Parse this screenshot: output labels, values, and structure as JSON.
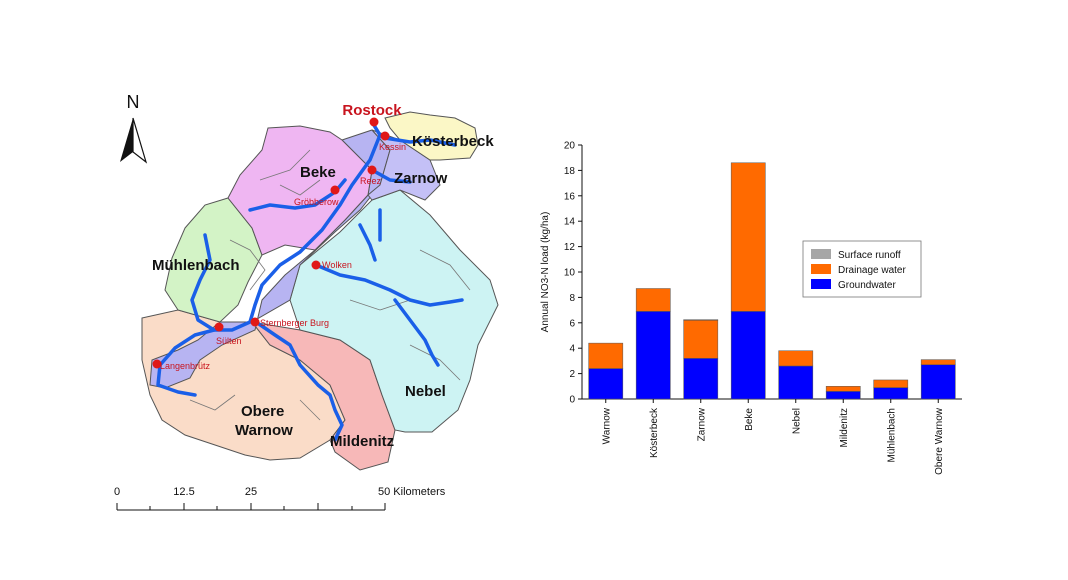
{
  "map": {
    "north_label": "N",
    "capital_label": "Rostock",
    "regions": {
      "koesterbeck": "Kösterbeck",
      "beke": "Beke",
      "zarnow": "Zarnow",
      "muehlenbach": "Mühlenbach",
      "nebel": "Nebel",
      "obere_warnow_1": "Obere",
      "obere_warnow_2": "Warnow",
      "mildenitz": "Mildenitz"
    },
    "towns": {
      "kessin": "Kessin",
      "reez": "Reez",
      "groebberow": "Gröbberow",
      "wolken": "Wolken",
      "sternberger_burg": "Sternberger Burg",
      "sulten": "Sülten",
      "langenbruetz": "Langenbrütz"
    },
    "scale": {
      "labels": [
        "0",
        "12.5",
        "25",
        "50 Kilometers"
      ]
    },
    "colors": {
      "river": "#1a5fe8",
      "town_dot": "#e01818",
      "town_text": "#c8141e"
    }
  },
  "chart_data": {
    "type": "bar",
    "stacked": true,
    "categories": [
      "Warnow",
      "Kösterbeck",
      "Zarnow",
      "Beke",
      "Nebel",
      "Mildenitz",
      "Mühlenbach",
      "Obere Warnow"
    ],
    "series": [
      {
        "name": "Groundwater",
        "color": "#0000ff",
        "values": [
          2.4,
          6.9,
          3.2,
          6.9,
          2.6,
          0.6,
          0.9,
          2.7
        ]
      },
      {
        "name": "Drainage water",
        "color": "#ff6a00",
        "values": [
          2.0,
          1.8,
          3.0,
          11.7,
          1.2,
          0.4,
          0.6,
          0.4
        ]
      },
      {
        "name": "Surface runoff",
        "color": "#a6a6a6",
        "values": [
          0.0,
          0.0,
          0.05,
          0.0,
          0.0,
          0.0,
          0.0,
          0.0
        ]
      }
    ],
    "legend_order": [
      "Surface runoff",
      "Drainage water",
      "Groundwater"
    ],
    "ylabel": "Annual NO3-N load (kg/ha)",
    "ylim": [
      0,
      20
    ],
    "yticks": [
      "0",
      "2",
      "4",
      "6",
      "8",
      "10",
      "12",
      "14",
      "16",
      "18",
      "20"
    ],
    "legend_position": "upper-right",
    "grid": false
  }
}
